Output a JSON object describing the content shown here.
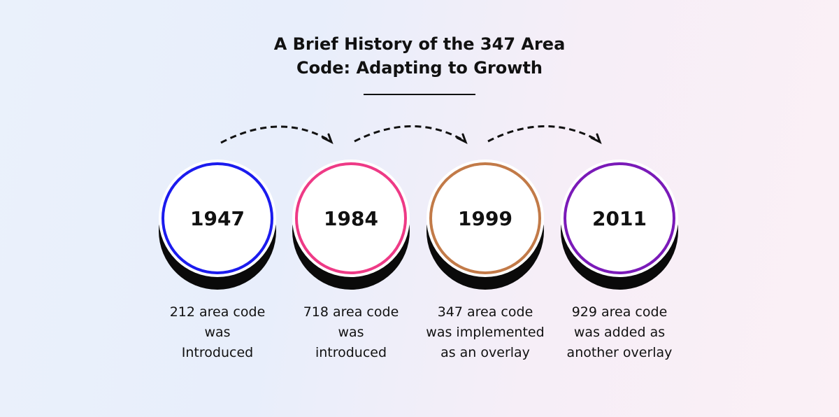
{
  "title_line1": "A Brief History of the 347 Area",
  "title_line2": "Code: Adapting to Growth",
  "milestones": [
    {
      "year": "1947",
      "color": "#1b1bee",
      "line1": "212 area code",
      "line2": "was",
      "line3": "Introduced"
    },
    {
      "year": "1984",
      "color": "#ee3a86",
      "line1": "718 area code",
      "line2": "was",
      "line3": "introduced"
    },
    {
      "year": "1999",
      "color": "#c27a48",
      "line1": "347 area code",
      "line2": "was implemented",
      "line3": "as an overlay"
    },
    {
      "year": "2011",
      "color": "#7a1ab8",
      "line1": "929 area code",
      "line2": "was added as",
      "line3": "another overlay"
    }
  ]
}
